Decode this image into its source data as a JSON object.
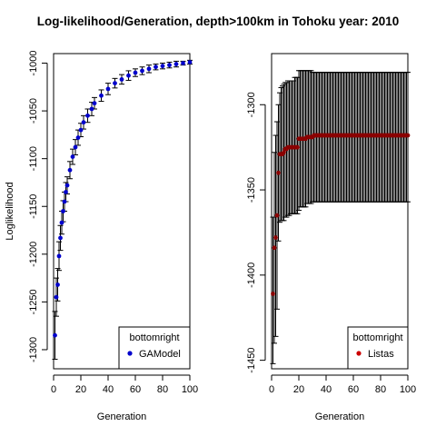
{
  "figure": {
    "title": "Log-likelihood/Generation, depth>100km in Tohoku year: 2010"
  },
  "chart_data": [
    {
      "type": "scatter",
      "error_bars": true,
      "xlabel": "Generation",
      "ylabel": "Loglikelihood",
      "xlim": [
        0,
        100
      ],
      "ylim": [
        -1320,
        -990
      ],
      "xticks": [
        0,
        20,
        40,
        60,
        80,
        100
      ],
      "yticks": [
        -1300,
        -1250,
        -1200,
        -1150,
        -1100,
        -1050,
        -1000
      ],
      "legend": {
        "title": "bottomright",
        "position": "bottom-right",
        "entries": [
          {
            "label": "GAModel",
            "color": "#0000cc"
          }
        ]
      },
      "series": [
        {
          "name": "GAModel",
          "color": "#0000cc",
          "x": [
            1,
            2,
            3,
            4,
            5,
            6,
            7,
            8,
            9,
            10,
            12,
            14,
            16,
            18,
            20,
            22,
            25,
            28,
            30,
            35,
            40,
            45,
            50,
            55,
            60,
            65,
            70,
            75,
            80,
            85,
            90,
            95,
            100
          ],
          "y": [
            -1285,
            -1245,
            -1232,
            -1202,
            -1183,
            -1167,
            -1155,
            -1145,
            -1135,
            -1128,
            -1112,
            -1098,
            -1088,
            -1078,
            -1070,
            -1062,
            -1055,
            -1048,
            -1042,
            -1034,
            -1027,
            -1021,
            -1017,
            -1013,
            -1010,
            -1008,
            -1006,
            -1004,
            -1003,
            -1002,
            -1001,
            -1000,
            -999
          ],
          "error": [
            25,
            20,
            17,
            15,
            13,
            12,
            11,
            10,
            10,
            9,
            9,
            8,
            8,
            8,
            7,
            7,
            7,
            7,
            6,
            6,
            6,
            5,
            5,
            5,
            4,
            4,
            4,
            3,
            3,
            3,
            3,
            2,
            2
          ]
        }
      ]
    },
    {
      "type": "scatter",
      "error_bars": true,
      "xlabel": "Generation",
      "ylabel": "",
      "xlim": [
        0,
        100
      ],
      "ylim": [
        -1455,
        -1270
      ],
      "xticks": [
        0,
        20,
        40,
        60,
        80,
        100
      ],
      "yticks": [
        -1450,
        -1400,
        -1350,
        -1300
      ],
      "legend": {
        "title": "bottomright",
        "position": "bottom-right",
        "entries": [
          {
            "label": "Listas",
            "color": "#cc0000"
          }
        ]
      },
      "series": [
        {
          "name": "Listas",
          "color": "#8b0000",
          "x": [
            1,
            2,
            3,
            4,
            5,
            6,
            7,
            8,
            9,
            10,
            11,
            12,
            13,
            14,
            15,
            16,
            17,
            18,
            19,
            20,
            21,
            22,
            23,
            24,
            25,
            26,
            27,
            28,
            29,
            30,
            31,
            32,
            33,
            34,
            35,
            36,
            37,
            38,
            39,
            40,
            41,
            42,
            43,
            44,
            45,
            46,
            47,
            48,
            49,
            50,
            51,
            52,
            53,
            54,
            55,
            56,
            57,
            58,
            59,
            60,
            61,
            62,
            63,
            64,
            65,
            66,
            67,
            68,
            69,
            70,
            71,
            72,
            73,
            74,
            75,
            76,
            77,
            78,
            79,
            80,
            81,
            82,
            83,
            84,
            85,
            86,
            87,
            88,
            89,
            90,
            91,
            92,
            93,
            94,
            95,
            96,
            97,
            98,
            99,
            100
          ],
          "y": [
            -1411,
            -1384,
            -1378,
            -1365,
            -1340,
            -1329,
            -1329,
            -1329,
            -1328,
            -1326,
            -1326,
            -1325,
            -1325,
            -1325,
            -1325,
            -1325,
            -1325,
            -1325,
            -1325,
            -1320,
            -1320,
            -1320,
            -1320,
            -1320,
            -1320,
            -1319,
            -1319,
            -1319,
            -1319,
            -1319,
            -1318,
            -1318,
            -1318,
            -1318,
            -1318,
            -1318,
            -1318,
            -1318,
            -1318,
            -1318,
            -1318,
            -1318,
            -1318,
            -1318,
            -1318,
            -1318,
            -1318,
            -1318,
            -1318,
            -1318,
            -1318,
            -1318,
            -1318,
            -1318,
            -1318,
            -1318,
            -1318,
            -1318,
            -1318,
            -1318,
            -1318,
            -1318,
            -1318,
            -1318,
            -1318,
            -1318,
            -1318,
            -1318,
            -1318,
            -1318,
            -1318,
            -1318,
            -1318,
            -1318,
            -1318,
            -1318,
            -1318,
            -1318,
            -1318,
            -1318,
            -1318,
            -1318,
            -1318,
            -1318,
            -1318,
            -1318,
            -1318,
            -1318,
            -1318,
            -1318,
            -1318,
            -1318,
            -1318,
            -1318,
            -1318,
            -1318,
            -1318,
            -1318,
            -1318,
            -1318
          ],
          "hi": [
            -1366,
            -1328,
            -1318,
            -1310,
            -1300,
            -1293,
            -1290,
            -1289,
            -1288,
            -1287,
            -1287,
            -1286,
            -1286,
            -1286,
            -1286,
            -1286,
            -1284,
            -1284,
            -1284,
            -1280,
            -1280,
            -1280,
            -1280,
            -1280,
            -1280,
            -1280,
            -1280,
            -1280,
            -1280,
            -1281,
            -1281,
            -1281,
            -1281,
            -1281,
            -1281,
            -1281,
            -1281,
            -1281,
            -1281,
            -1281,
            -1281,
            -1281,
            -1281,
            -1281,
            -1281,
            -1281,
            -1281,
            -1281,
            -1281,
            -1281,
            -1281,
            -1281,
            -1281,
            -1281,
            -1281,
            -1281,
            -1281,
            -1281,
            -1281,
            -1281,
            -1281,
            -1281,
            -1281,
            -1281,
            -1281,
            -1281,
            -1281,
            -1281,
            -1281,
            -1281,
            -1281,
            -1281,
            -1281,
            -1281,
            -1281,
            -1281,
            -1281,
            -1281,
            -1281,
            -1281,
            -1281,
            -1281,
            -1281,
            -1281,
            -1281,
            -1281,
            -1281,
            -1281,
            -1281,
            -1281,
            -1281,
            -1281,
            -1281,
            -1281,
            -1281,
            -1281,
            -1281,
            -1281,
            -1281,
            -1281
          ],
          "lo": [
            -1452,
            -1440,
            -1436,
            -1420,
            -1380,
            -1369,
            -1368,
            -1368,
            -1368,
            -1366,
            -1366,
            -1365,
            -1365,
            -1364,
            -1364,
            -1364,
            -1364,
            -1364,
            -1364,
            -1362,
            -1360,
            -1360,
            -1360,
            -1360,
            -1360,
            -1358,
            -1358,
            -1358,
            -1358,
            -1357,
            -1357,
            -1357,
            -1357,
            -1357,
            -1357,
            -1357,
            -1357,
            -1357,
            -1357,
            -1357,
            -1357,
            -1357,
            -1357,
            -1357,
            -1357,
            -1357,
            -1357,
            -1357,
            -1357,
            -1357,
            -1357,
            -1357,
            -1357,
            -1357,
            -1357,
            -1357,
            -1357,
            -1357,
            -1357,
            -1357,
            -1357,
            -1357,
            -1357,
            -1357,
            -1357,
            -1357,
            -1357,
            -1357,
            -1357,
            -1357,
            -1357,
            -1357,
            -1357,
            -1357,
            -1357,
            -1357,
            -1357,
            -1357,
            -1357,
            -1357,
            -1357,
            -1357,
            -1357,
            -1357,
            -1357,
            -1357,
            -1357,
            -1357,
            -1357,
            -1357,
            -1357,
            -1357,
            -1357,
            -1357,
            -1357,
            -1357,
            -1357,
            -1357,
            -1357,
            -1357
          ]
        }
      ]
    }
  ]
}
